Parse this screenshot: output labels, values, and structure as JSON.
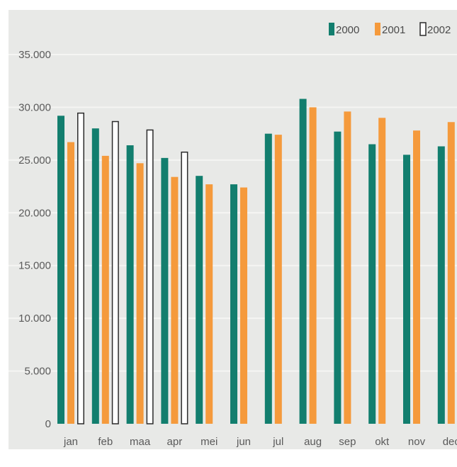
{
  "colors": {
    "background": "#e8e9e7",
    "grid": "#f5f5f3",
    "s2000": "#127e6e",
    "s2001": "#f59a3c",
    "s2002_fill": "#ffffff",
    "s2002_stroke": "#2b2b2b"
  },
  "chart_data": {
    "type": "bar",
    "title": "",
    "xlabel": "",
    "ylabel": "",
    "ylim": [
      0,
      35000
    ],
    "grid": true,
    "legend": "top-right",
    "y_ticks": [
      "0",
      "5.000",
      "10.000",
      "15.000",
      "20.000",
      "25.000",
      "30.000",
      "35.000"
    ],
    "categories": [
      "jan",
      "feb",
      "maa",
      "apr",
      "mei",
      "jun",
      "jul",
      "aug",
      "sep",
      "okt",
      "nov",
      "dec"
    ],
    "series": [
      {
        "name": "2000",
        "values": [
          29200,
          28000,
          26400,
          25200,
          23500,
          22700,
          27500,
          30800,
          27700,
          26500,
          25500,
          26300
        ]
      },
      {
        "name": "2001",
        "values": [
          26700,
          25400,
          24700,
          23400,
          22700,
          22400,
          27400,
          30000,
          29600,
          29000,
          27800,
          28600
        ]
      },
      {
        "name": "2002",
        "values": [
          29500,
          28700,
          27900,
          25800,
          null,
          null,
          null,
          null,
          null,
          null,
          null,
          null
        ]
      }
    ]
  }
}
